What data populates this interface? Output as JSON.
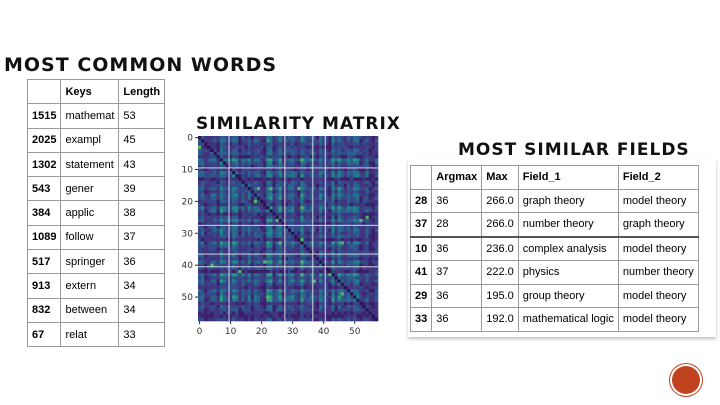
{
  "headings": {
    "common_words": "Most Common Words",
    "similarity_matrix": "Similarity Matrix",
    "similar_fields": "Most Similar Fields"
  },
  "words_table": {
    "columns": [
      "",
      "Keys",
      "Length"
    ],
    "rows": [
      {
        "idx": "1515",
        "key": "mathemat",
        "len": "53"
      },
      {
        "idx": "2025",
        "key": "exampl",
        "len": "45"
      },
      {
        "idx": "1302",
        "key": "statement",
        "len": "43"
      },
      {
        "idx": "543",
        "key": "gener",
        "len": "39"
      },
      {
        "idx": "384",
        "key": "applic",
        "len": "38"
      },
      {
        "idx": "1089",
        "key": "follow",
        "len": "37"
      },
      {
        "idx": "517",
        "key": "springer",
        "len": "36"
      },
      {
        "idx": "913",
        "key": "extern",
        "len": "34"
      },
      {
        "idx": "832",
        "key": "between",
        "len": "34"
      },
      {
        "idx": "67",
        "key": "relat",
        "len": "33"
      }
    ]
  },
  "fields_table": {
    "columns": [
      "",
      "Argmax",
      "Max",
      "Field_1",
      "Field_2"
    ],
    "rows": [
      {
        "idx": "28",
        "argmax": "36",
        "max": "266.0",
        "f1": "graph theory",
        "f2": "model theory"
      },
      {
        "idx": "37",
        "argmax": "28",
        "max": "266.0",
        "f1": "number theory",
        "f2": "graph theory"
      },
      {
        "idx": "10",
        "argmax": "36",
        "max": "236.0",
        "f1": "complex analysis",
        "f2": "model theory"
      },
      {
        "idx": "41",
        "argmax": "37",
        "max": "222.0",
        "f1": "physics",
        "f2": "number theory"
      },
      {
        "idx": "29",
        "argmax": "36",
        "max": "195.0",
        "f1": "group theory",
        "f2": "model theory"
      },
      {
        "idx": "33",
        "argmax": "36",
        "max": "192.0",
        "f1": "mathematical logic",
        "f2": "model theory"
      }
    ]
  },
  "chart_data": {
    "type": "heatmap",
    "size": 58,
    "x_ticks": [
      0,
      10,
      20,
      30,
      40,
      50
    ],
    "y_ticks": [
      0,
      10,
      20,
      30,
      40,
      50
    ],
    "xlim": [
      0,
      57
    ],
    "ylim": [
      0,
      57
    ],
    "colormap": "viridis",
    "white_lines": [
      10,
      28,
      37,
      41
    ],
    "grid": false
  },
  "colors": {
    "logo": "#c0421f"
  }
}
